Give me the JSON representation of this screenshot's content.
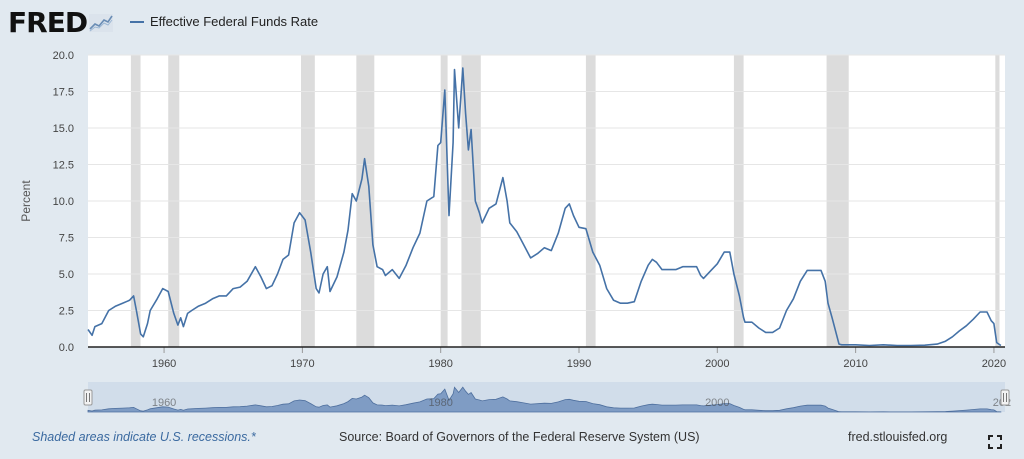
{
  "header": {
    "logo_text": "FRED",
    "legend_label": "Effective Federal Funds Rate"
  },
  "colors": {
    "line": "#4572a7",
    "recession": "#dcdcdc",
    "background": "#e1e9f0",
    "plot": "#ffffff",
    "navigator_fill": "#c5d3e6"
  },
  "footer": {
    "note": "Shaded areas indicate U.S. recessions.*",
    "source": "Source: Board of Governors of the Federal Reserve System (US)",
    "site": "fred.stlouisfed.org"
  },
  "icons": {
    "fullscreen": "fullscreen-icon",
    "logo_graph": "fred-graph-icon"
  },
  "chart_data": {
    "type": "line",
    "title": "",
    "xlabel": "",
    "ylabel": "Percent",
    "xlim": [
      1954.5,
      2020.8
    ],
    "ylim": [
      0,
      20
    ],
    "y_ticks": [
      "0.0",
      "2.5",
      "5.0",
      "7.5",
      "10.0",
      "12.5",
      "15.0",
      "17.5",
      "20.0"
    ],
    "x_ticks": [
      "1960",
      "1970",
      "1980",
      "1990",
      "2000",
      "2010",
      "2020"
    ],
    "navigator_labels": [
      "1960",
      "1980",
      "2000",
      "202"
    ],
    "grid": "horizontal",
    "legend": "top-left",
    "recessions": [
      [
        1957.6,
        1958.3
      ],
      [
        1960.3,
        1961.1
      ],
      [
        1969.9,
        1970.9
      ],
      [
        1973.9,
        1975.2
      ],
      [
        1980.0,
        1980.5
      ],
      [
        1981.5,
        1982.9
      ],
      [
        1990.5,
        1991.2
      ],
      [
        2001.2,
        2001.9
      ],
      [
        2007.9,
        2009.5
      ],
      [
        2020.1,
        2020.4
      ]
    ],
    "series": [
      {
        "values": [
          [
            1954.5,
            1.2
          ],
          [
            1954.8,
            0.8
          ],
          [
            1955.0,
            1.4
          ],
          [
            1955.5,
            1.6
          ],
          [
            1956.0,
            2.5
          ],
          [
            1956.5,
            2.8
          ],
          [
            1957.0,
            3.0
          ],
          [
            1957.5,
            3.2
          ],
          [
            1957.8,
            3.5
          ],
          [
            1958.0,
            2.5
          ],
          [
            1958.3,
            0.9
          ],
          [
            1958.5,
            0.7
          ],
          [
            1958.8,
            1.6
          ],
          [
            1959.0,
            2.5
          ],
          [
            1959.5,
            3.3
          ],
          [
            1959.9,
            4.0
          ],
          [
            1960.3,
            3.8
          ],
          [
            1960.7,
            2.3
          ],
          [
            1961.0,
            1.5
          ],
          [
            1961.2,
            2.0
          ],
          [
            1961.4,
            1.4
          ],
          [
            1961.7,
            2.3
          ],
          [
            1962.0,
            2.5
          ],
          [
            1962.5,
            2.8
          ],
          [
            1963.0,
            3.0
          ],
          [
            1963.5,
            3.3
          ],
          [
            1964.0,
            3.5
          ],
          [
            1964.5,
            3.5
          ],
          [
            1965.0,
            4.0
          ],
          [
            1965.5,
            4.1
          ],
          [
            1966.0,
            4.5
          ],
          [
            1966.6,
            5.5
          ],
          [
            1967.0,
            4.8
          ],
          [
            1967.4,
            4.0
          ],
          [
            1967.8,
            4.2
          ],
          [
            1968.2,
            5.0
          ],
          [
            1968.6,
            6.0
          ],
          [
            1969.0,
            6.3
          ],
          [
            1969.4,
            8.5
          ],
          [
            1969.8,
            9.2
          ],
          [
            1970.2,
            8.7
          ],
          [
            1970.6,
            6.5
          ],
          [
            1971.0,
            4.0
          ],
          [
            1971.2,
            3.7
          ],
          [
            1971.5,
            5.0
          ],
          [
            1971.8,
            5.5
          ],
          [
            1972.0,
            3.8
          ],
          [
            1972.5,
            4.8
          ],
          [
            1973.0,
            6.5
          ],
          [
            1973.3,
            8.0
          ],
          [
            1973.6,
            10.5
          ],
          [
            1973.9,
            10.0
          ],
          [
            1974.3,
            11.5
          ],
          [
            1974.5,
            12.9
          ],
          [
            1974.8,
            11.0
          ],
          [
            1975.1,
            7.0
          ],
          [
            1975.4,
            5.5
          ],
          [
            1975.8,
            5.3
          ],
          [
            1976.0,
            4.9
          ],
          [
            1976.5,
            5.3
          ],
          [
            1977.0,
            4.7
          ],
          [
            1977.5,
            5.6
          ],
          [
            1978.0,
            6.8
          ],
          [
            1978.5,
            7.8
          ],
          [
            1979.0,
            10.0
          ],
          [
            1979.5,
            10.3
          ],
          [
            1979.8,
            13.8
          ],
          [
            1980.0,
            14.0
          ],
          [
            1980.3,
            17.6
          ],
          [
            1980.6,
            9.0
          ],
          [
            1980.9,
            14.0
          ],
          [
            1981.0,
            19.0
          ],
          [
            1981.3,
            15.0
          ],
          [
            1981.6,
            19.1
          ],
          [
            1981.8,
            16.0
          ],
          [
            1982.0,
            13.5
          ],
          [
            1982.2,
            14.9
          ],
          [
            1982.5,
            10.0
          ],
          [
            1982.8,
            9.2
          ],
          [
            1983.0,
            8.5
          ],
          [
            1983.5,
            9.5
          ],
          [
            1984.0,
            9.8
          ],
          [
            1984.5,
            11.6
          ],
          [
            1984.8,
            10.0
          ],
          [
            1985.0,
            8.5
          ],
          [
            1985.5,
            7.9
          ],
          [
            1986.0,
            7.0
          ],
          [
            1986.5,
            6.1
          ],
          [
            1987.0,
            6.4
          ],
          [
            1987.5,
            6.8
          ],
          [
            1988.0,
            6.6
          ],
          [
            1988.5,
            7.8
          ],
          [
            1989.0,
            9.5
          ],
          [
            1989.3,
            9.8
          ],
          [
            1989.6,
            9.0
          ],
          [
            1990.0,
            8.2
          ],
          [
            1990.5,
            8.1
          ],
          [
            1991.0,
            6.5
          ],
          [
            1991.5,
            5.6
          ],
          [
            1992.0,
            4.0
          ],
          [
            1992.5,
            3.2
          ],
          [
            1993.0,
            3.0
          ],
          [
            1993.5,
            3.0
          ],
          [
            1994.0,
            3.1
          ],
          [
            1994.5,
            4.5
          ],
          [
            1995.0,
            5.6
          ],
          [
            1995.3,
            6.0
          ],
          [
            1995.6,
            5.8
          ],
          [
            1996.0,
            5.3
          ],
          [
            1996.5,
            5.3
          ],
          [
            1997.0,
            5.3
          ],
          [
            1997.5,
            5.5
          ],
          [
            1998.0,
            5.5
          ],
          [
            1998.5,
            5.5
          ],
          [
            1998.8,
            4.9
          ],
          [
            1999.0,
            4.7
          ],
          [
            1999.5,
            5.2
          ],
          [
            2000.0,
            5.7
          ],
          [
            2000.5,
            6.5
          ],
          [
            2000.9,
            6.5
          ],
          [
            2001.2,
            5.0
          ],
          [
            2001.6,
            3.5
          ],
          [
            2001.9,
            2.0
          ],
          [
            2002.0,
            1.7
          ],
          [
            2002.5,
            1.7
          ],
          [
            2003.0,
            1.3
          ],
          [
            2003.5,
            1.0
          ],
          [
            2004.0,
            1.0
          ],
          [
            2004.5,
            1.3
          ],
          [
            2005.0,
            2.5
          ],
          [
            2005.5,
            3.3
          ],
          [
            2006.0,
            4.5
          ],
          [
            2006.5,
            5.25
          ],
          [
            2007.0,
            5.25
          ],
          [
            2007.5,
            5.25
          ],
          [
            2007.8,
            4.5
          ],
          [
            2008.0,
            3.0
          ],
          [
            2008.3,
            2.0
          ],
          [
            2008.8,
            0.2
          ],
          [
            2009.0,
            0.15
          ],
          [
            2010.0,
            0.15
          ],
          [
            2011.0,
            0.1
          ],
          [
            2012.0,
            0.15
          ],
          [
            2013.0,
            0.1
          ],
          [
            2014.0,
            0.1
          ],
          [
            2015.0,
            0.12
          ],
          [
            2015.9,
            0.2
          ],
          [
            2016.5,
            0.4
          ],
          [
            2017.0,
            0.7
          ],
          [
            2017.5,
            1.1
          ],
          [
            2018.0,
            1.45
          ],
          [
            2018.5,
            1.9
          ],
          [
            2019.0,
            2.4
          ],
          [
            2019.5,
            2.4
          ],
          [
            2019.8,
            1.8
          ],
          [
            2020.0,
            1.6
          ],
          [
            2020.2,
            0.3
          ],
          [
            2020.5,
            0.1
          ]
        ]
      }
    ]
  }
}
